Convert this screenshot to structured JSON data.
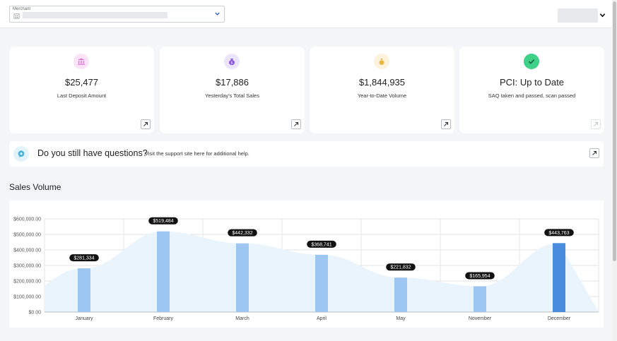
{
  "header": {
    "merchant_label": "Merchant",
    "merchant_icon": "store-icon",
    "merchant_chevron": "chevron-down-icon",
    "user_chevron": "chevron-down-icon"
  },
  "cards": [
    {
      "value": "$25,477",
      "label": "Last Deposit Amount",
      "icon": "bank-icon",
      "icon_bg": "#fbe4f7",
      "icon_color": "#d96fd0"
    },
    {
      "value": "$17,886",
      "label": "Yesterday's Total Sales",
      "icon": "money-bag-icon",
      "icon_bg": "#ebe4fb",
      "icon_color": "#8a55e0"
    },
    {
      "value": "$1,844,935",
      "label": "Year-to-Date Volume",
      "icon": "coin-bag-icon",
      "icon_bg": "#fdf2db",
      "icon_color": "#eab43a"
    },
    {
      "value": "PCI: Up to Date",
      "label": "SAQ taken and passed, scan passed",
      "icon": "check-icon",
      "icon_bg": "#3fd187",
      "icon_color": "#1e6b43"
    }
  ],
  "help": {
    "title": "Do you still have questions?",
    "text": "Visit the support site here for additional help."
  },
  "sales_volume": {
    "title": "Sales Volume"
  },
  "colors": {
    "bar": "#9dc6f2",
    "bar_highlight": "#4a8cdd",
    "area": "#eaf4fd"
  },
  "chart_data": {
    "type": "bar",
    "categories": [
      "January",
      "February",
      "March",
      "April",
      "May",
      "November",
      "December"
    ],
    "values": [
      281334,
      519484,
      442332,
      368741,
      221832,
      165954,
      443763
    ],
    "data_labels": [
      "$281,334",
      "$519,484",
      "$442,332",
      "$368,741",
      "$221,832",
      "$165,954",
      "$443,763"
    ],
    "highlight_index": 6,
    "y_ticks": [
      "$0.00",
      "$100,000.00",
      "$200,000.00",
      "$300,000.00",
      "$400,000.00",
      "$500,000.00",
      "$600,000.00"
    ],
    "ylim": [
      0,
      600000
    ],
    "grid": true,
    "area_overlay": true
  }
}
